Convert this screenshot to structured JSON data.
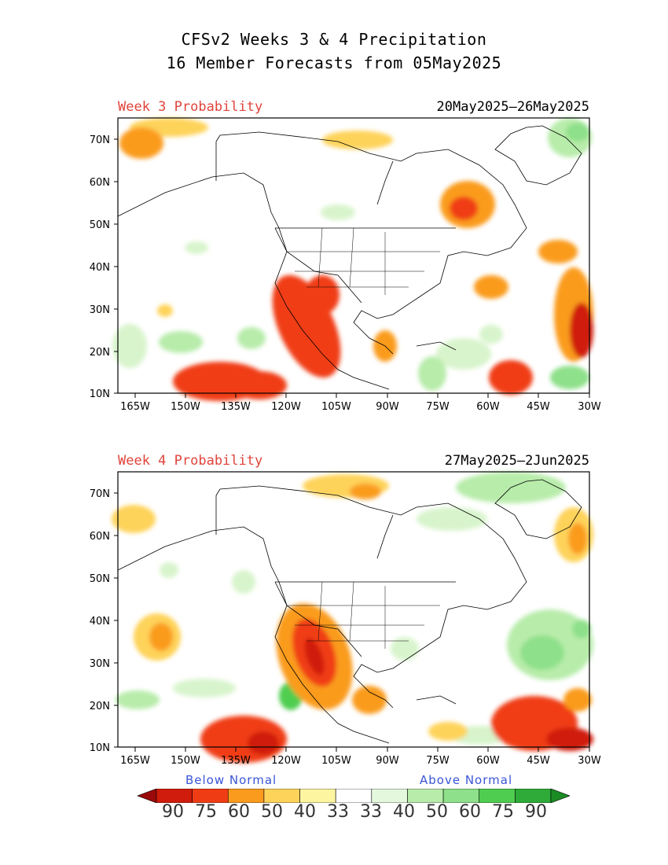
{
  "header": {
    "line1": "CFSv2 Weeks 3 & 4 Precipitation",
    "line2": "16 Member Forecasts from 05May2025"
  },
  "panels": [
    {
      "label": "Week 3 Probability",
      "dates": "20May2025—26May2025",
      "lat_ticks": [
        "70N",
        "60N",
        "50N",
        "40N",
        "30N",
        "20N",
        "10N"
      ],
      "lon_ticks": [
        "165W",
        "150W",
        "135W",
        "120W",
        "105W",
        "90W",
        "75W",
        "60W",
        "45W",
        "30W"
      ]
    },
    {
      "label": "Week 4 Probability",
      "dates": "27May2025—2Jun2025",
      "lat_ticks": [
        "70N",
        "60N",
        "50N",
        "40N",
        "30N",
        "20N",
        "10N"
      ],
      "lon_ticks": [
        "165W",
        "150W",
        "135W",
        "120W",
        "105W",
        "90W",
        "75W",
        "60W",
        "45W",
        "30W"
      ]
    }
  ],
  "legend": {
    "below": "Below Normal",
    "above": "Above Normal",
    "values": [
      "90",
      "75",
      "60",
      "50",
      "40",
      "33",
      "33",
      "40",
      "50",
      "60",
      "75",
      "90"
    ],
    "colors": [
      "#9b0a0a",
      "#d01c0c",
      "#f03c14",
      "#fa9b1e",
      "#fed35a",
      "#fef5a0",
      "#ffffff",
      "#e3f8dc",
      "#b8ecaa",
      "#8ee08a",
      "#4fcd50",
      "#2eab39",
      "#1b8c24"
    ]
  }
}
